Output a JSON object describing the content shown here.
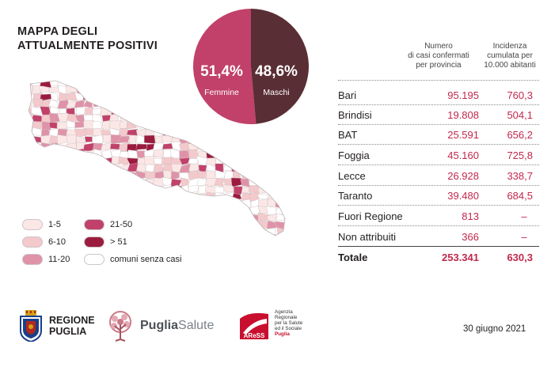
{
  "title": {
    "line1": "MAPPA DEGLI",
    "line2": "ATTUALMENTE POSITIVI"
  },
  "gender": {
    "female": {
      "pct": "51,4%",
      "label": "Femmine",
      "fraction": 0.514,
      "color": "#c1416a"
    },
    "male": {
      "pct": "48,6%",
      "label": "Maschi",
      "fraction": 0.486,
      "color": "#5a2e35"
    }
  },
  "table": {
    "header_cases": [
      "Numero",
      "di casi confermati",
      "per provincia"
    ],
    "header_incidence": [
      "Incidenza",
      "cumulata per",
      "10.000 abitanti"
    ],
    "rows": [
      {
        "name": "Bari",
        "cases": "95.195",
        "incidence": "760,3"
      },
      {
        "name": "Brindisi",
        "cases": "19.808",
        "incidence": "504,1"
      },
      {
        "name": "BAT",
        "cases": "25.591",
        "incidence": "656,2"
      },
      {
        "name": "Foggia",
        "cases": "45.160",
        "incidence": "725,8"
      },
      {
        "name": "Lecce",
        "cases": "26.928",
        "incidence": "338,7"
      },
      {
        "name": "Taranto",
        "cases": "39.480",
        "incidence": "684,5"
      },
      {
        "name": "Fuori Regione",
        "cases": "813",
        "incidence": "–"
      },
      {
        "name": "Non attribuiti",
        "cases": "366",
        "incidence": "–"
      }
    ],
    "total": {
      "name": "Totale",
      "cases": "253.341",
      "incidence": "630,3"
    }
  },
  "legend": [
    {
      "label": "1-5",
      "color": "#fbe8e6"
    },
    {
      "label": "6-10",
      "color": "#f3c9cc"
    },
    {
      "label": "11-20",
      "color": "#df93a8"
    },
    {
      "label": "21-50",
      "color": "#c1416a"
    },
    {
      "label": "> 51",
      "color": "#9b1b3f"
    },
    {
      "label": "comuni senza casi",
      "color": "#ffffff"
    }
  ],
  "logos": {
    "regione": [
      "REGIONE",
      "PUGLIA"
    ],
    "puglia_salute": {
      "bold": "Puglia",
      "light": "Salute"
    },
    "aress": {
      "mark": "AReSS",
      "lines": [
        "Agenzia",
        "Regionale",
        "per la Salute",
        "ed il Sociale",
        "Puglia"
      ]
    }
  },
  "date": "30 giugno 2021",
  "colors": {
    "accent": "#c1284c",
    "text": "#231f20"
  }
}
